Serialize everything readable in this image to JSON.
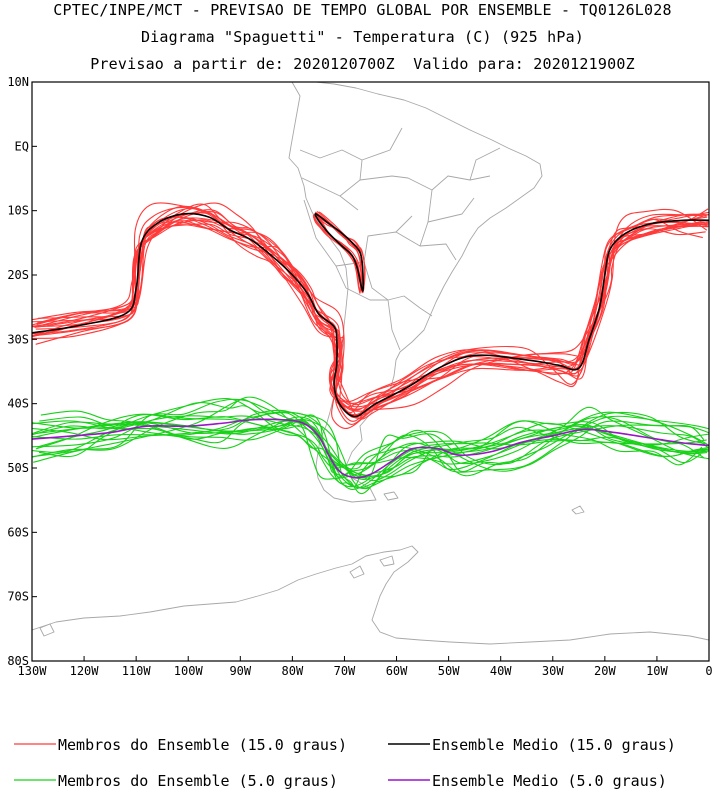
{
  "title": {
    "line1": "CPTEC/INPE/MCT - PREVISAO DE TEMPO GLOBAL POR ENSEMBLE - TQ0126L028",
    "line2": "Diagrama \"Spaguetti\" - Temperatura (C) (925 hPa)",
    "line3": "Previsao a partir de: 2020120700Z  Valido para: 2020121900Z"
  },
  "map": {
    "lat_labels": [
      {
        "lat": 10,
        "label": "10N"
      },
      {
        "lat": 0,
        "label": "EQ"
      },
      {
        "lat": -10,
        "label": "10S"
      },
      {
        "lat": -20,
        "label": "20S"
      },
      {
        "lat": -30,
        "label": "30S"
      },
      {
        "lat": -40,
        "label": "40S"
      },
      {
        "lat": -50,
        "label": "50S"
      },
      {
        "lat": -60,
        "label": "60S"
      },
      {
        "lat": -70,
        "label": "70S"
      },
      {
        "lat": -80,
        "label": "80S"
      }
    ],
    "lon_labels": [
      {
        "lon": -130,
        "label": "130W"
      },
      {
        "lon": -120,
        "label": "120W"
      },
      {
        "lon": -110,
        "label": "110W"
      },
      {
        "lon": -100,
        "label": "100W"
      },
      {
        "lon": -90,
        "label": "90W"
      },
      {
        "lon": -80,
        "label": "80W"
      },
      {
        "lon": -70,
        "label": "70W"
      },
      {
        "lon": -60,
        "label": "60W"
      },
      {
        "lon": -50,
        "label": "50W"
      },
      {
        "lon": -40,
        "label": "40W"
      },
      {
        "lon": -30,
        "label": "30W"
      },
      {
        "lon": -20,
        "label": "20W"
      },
      {
        "lon": -10,
        "label": "10W"
      },
      {
        "lon": 0,
        "label": "0"
      }
    ],
    "lon_range": [
      -130,
      0
    ],
    "lat_range": [
      -80,
      10
    ]
  },
  "colors": {
    "member_15": "#ff3a3a",
    "mean_15": "#000000",
    "member_5": "#19d119",
    "mean_5": "#9a14c8",
    "coast": "#a8a8a8"
  },
  "isolines": {
    "mean_15": [
      [
        -130,
        -29
      ],
      [
        -122,
        -28
      ],
      [
        -112,
        -26
      ],
      [
        -110,
        -22
      ],
      [
        -109,
        -15
      ],
      [
        -106,
        -12
      ],
      [
        -101,
        -10.5
      ],
      [
        -96,
        -11
      ],
      [
        -92,
        -13
      ],
      [
        -88,
        -14.5
      ],
      [
        -84,
        -17
      ],
      [
        -80,
        -20
      ],
      [
        -77,
        -23
      ],
      [
        -75,
        -26
      ],
      [
        -72,
        -28
      ],
      [
        -71.5,
        -30
      ],
      [
        -71.5,
        -34
      ],
      [
        -72,
        -37
      ],
      [
        -71,
        -40
      ],
      [
        -68,
        -42
      ],
      [
        -64,
        -40
      ],
      [
        -58,
        -37.5
      ],
      [
        -52,
        -34.5
      ],
      [
        -45,
        -32.5
      ],
      [
        -35,
        -33.2
      ],
      [
        -29,
        -34
      ],
      [
        -25,
        -34.5
      ],
      [
        -23,
        -30
      ],
      [
        -21,
        -25
      ],
      [
        -20,
        -20
      ],
      [
        -19,
        -16
      ],
      [
        -16,
        -13.5
      ],
      [
        -11,
        -12
      ],
      [
        -5,
        -11.5
      ],
      [
        0,
        -11.5
      ]
    ],
    "mean_5": [
      [
        -130,
        -45.5
      ],
      [
        -122,
        -45
      ],
      [
        -115,
        -44.5
      ],
      [
        -108,
        -43.5
      ],
      [
        -100,
        -43.5
      ],
      [
        -93,
        -43
      ],
      [
        -88,
        -42.5
      ],
      [
        -82,
        -42.5
      ],
      [
        -78,
        -43
      ],
      [
        -75,
        -45
      ],
      [
        -73,
        -48
      ],
      [
        -71,
        -50.5
      ],
      [
        -68,
        -51.5
      ],
      [
        -65,
        -51
      ],
      [
        -61,
        -49
      ],
      [
        -57,
        -47
      ],
      [
        -52,
        -47
      ],
      [
        -48,
        -48
      ],
      [
        -42,
        -47.5
      ],
      [
        -36,
        -46
      ],
      [
        -30,
        -45
      ],
      [
        -24,
        -44
      ],
      [
        -18,
        -44.5
      ],
      [
        -10,
        -45.5
      ],
      [
        -4,
        -46.2
      ],
      [
        0,
        -46.5
      ]
    ],
    "mean_andes": [
      [
        -75.5,
        -10.5
      ],
      [
        -73,
        -12
      ],
      [
        -70.5,
        -13.5
      ],
      [
        -68.5,
        -15
      ],
      [
        -67,
        -16.5
      ],
      [
        -66.5,
        -19
      ],
      [
        -66.5,
        -22.5
      ],
      [
        -67.5,
        -19
      ],
      [
        -68.5,
        -17
      ],
      [
        -70.5,
        -15.5
      ],
      [
        -73,
        -13.5
      ],
      [
        -75,
        -11.5
      ],
      [
        -75.5,
        -10.5
      ]
    ]
  },
  "legend": {
    "members_15": "Membros do Ensemble (15.0 graus)",
    "mean_15": "Ensemble Medio (15.0 graus)",
    "members_5": "Membros do Ensemble (5.0 graus)",
    "mean_5": "Ensemble Medio (5.0 graus)"
  }
}
